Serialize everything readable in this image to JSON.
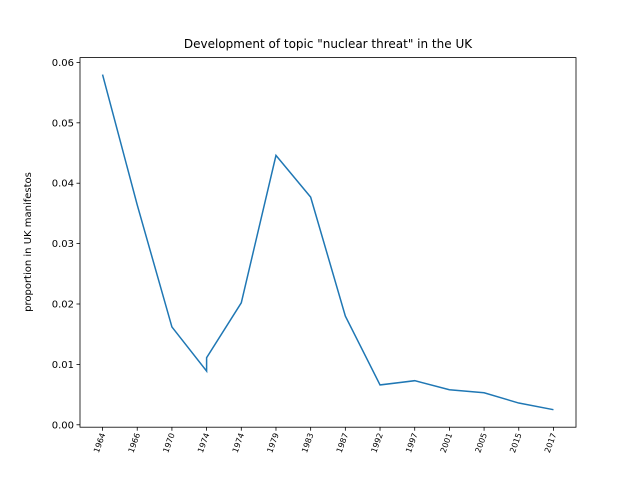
{
  "chart_data": {
    "type": "line",
    "title": "Development of topic \"nuclear threat\" in the UK",
    "ylabel": "proportion in UK manifestos",
    "series": [
      {
        "color": "#1f77b4",
        "x": [
          0,
          1,
          2,
          3,
          3,
          4,
          5,
          6,
          7,
          8,
          9,
          10,
          11,
          12,
          13
        ],
        "values": [
          0.058,
          0.0364,
          0.0162,
          0.0089,
          0.0111,
          0.0202,
          0.0446,
          0.0377,
          0.018,
          0.0066,
          0.0073,
          0.0058,
          0.0053,
          0.0036,
          0.0025
        ]
      }
    ],
    "xlim": [
      -0.65,
      13.65
    ],
    "xticks": [
      {
        "value": 0,
        "label": "1964"
      },
      {
        "value": 1,
        "label": "1966"
      },
      {
        "value": 2,
        "label": "1970"
      },
      {
        "value": 3,
        "label": "1974"
      },
      {
        "value": 4,
        "label": "1974"
      },
      {
        "value": 5,
        "label": "1979"
      },
      {
        "value": 6,
        "label": "1983"
      },
      {
        "value": 7,
        "label": "1987"
      },
      {
        "value": 8,
        "label": "1992"
      },
      {
        "value": 9,
        "label": "1997"
      },
      {
        "value": 10,
        "label": "2001"
      },
      {
        "value": 11,
        "label": "2005"
      },
      {
        "value": 12,
        "label": "2015"
      },
      {
        "value": 13,
        "label": "2017"
      }
    ],
    "ylim": [
      -0.0004,
      0.0608
    ],
    "yticks": [
      {
        "value": 0,
        "label": "0.00"
      },
      0.01,
      0.02,
      0.03,
      0.04,
      0.05,
      0.06
    ]
  }
}
